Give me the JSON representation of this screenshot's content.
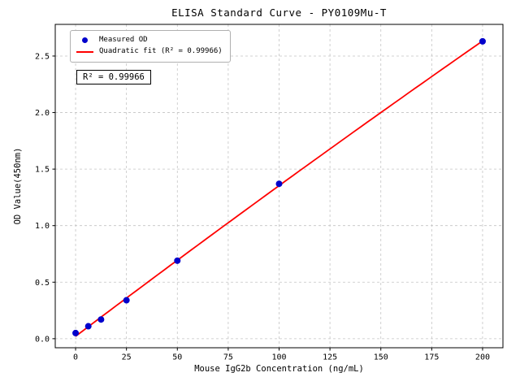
{
  "chart_data": {
    "type": "scatter",
    "title": "ELISA Standard Curve - PY0109Mu-T",
    "xlabel": "Mouse IgG2b Concentration (ng/mL)",
    "ylabel": "OD Value(450nm)",
    "x": [
      0,
      6.25,
      12.5,
      25,
      50,
      100,
      200
    ],
    "y": [
      0.05,
      0.11,
      0.17,
      0.34,
      0.69,
      1.37,
      2.63
    ],
    "series": [
      {
        "name": "Measured OD",
        "type": "scatter",
        "color": "#0000cc"
      },
      {
        "name": "Quadratic fit (R² = 0.99966)",
        "type": "line",
        "color": "#ff0000"
      }
    ],
    "fit_type": "quadratic",
    "r_squared": 0.99966,
    "annotation": "R² = 0.99966",
    "xlim": [
      -10,
      210
    ],
    "ylim": [
      -0.08,
      2.78
    ],
    "xticks": [
      0,
      25,
      50,
      75,
      100,
      125,
      150,
      175,
      200
    ],
    "xtick_labels": [
      "0",
      "25",
      "50",
      "75",
      "100",
      "125",
      "150",
      "175",
      "200"
    ],
    "yticks": [
      0.0,
      0.5,
      1.0,
      1.5,
      2.0,
      2.5
    ],
    "ytick_labels": [
      "0.0",
      "0.5",
      "1.0",
      "1.5",
      "2.0",
      "2.5"
    ],
    "grid": true,
    "legend_position": "upper left"
  },
  "colors": {
    "point": "#0000cc",
    "fit_line": "#ff0000",
    "grid": "#c4c4c4",
    "axis": "#000000"
  }
}
